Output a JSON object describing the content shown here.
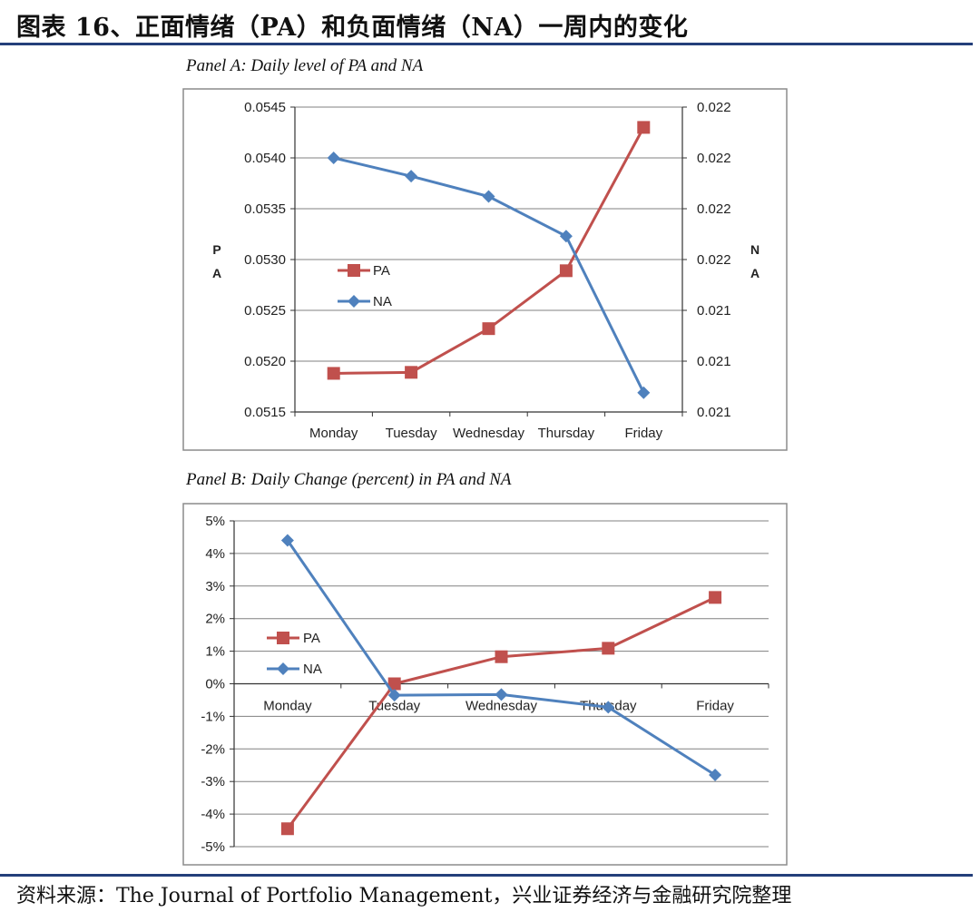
{
  "header": {
    "title": "图表 16、正面情绪（PA）和负面情绪（NA）一周内的变化"
  },
  "footer": {
    "source": "资料来源：The Journal of Portfolio Management，兴业证券经济与金融研究院整理"
  },
  "colors": {
    "pa": "#c0504d",
    "na": "#4f81bd",
    "grid": "#808080",
    "rule": "#243f7a"
  },
  "chart_data": [
    {
      "type": "line",
      "title": "Panel A: Daily level of PA and NA",
      "categories": [
        "Monday",
        "Tuesday",
        "Wednesday",
        "Thursday",
        "Friday"
      ],
      "ylabel": "PA",
      "y2label": "NA",
      "ylim": [
        0.0515,
        0.0545
      ],
      "yticks": [
        "0.0515",
        "0.0520",
        "0.0525",
        "0.0530",
        "0.0535",
        "0.0540",
        "0.0545"
      ],
      "y2ticks": [
        "0.021",
        "0.021",
        "0.021",
        "0.022",
        "0.022",
        "0.022",
        "0.022"
      ],
      "legend_position": "left-center",
      "grid": true,
      "series": [
        {
          "name": "PA",
          "axis": "left",
          "marker": "square",
          "values": [
            0.05188,
            0.05189,
            0.05232,
            0.05289,
            0.0543
          ]
        },
        {
          "name": "NA",
          "axis": "right",
          "marker": "diamond",
          "values": [
            0.054,
            0.05382,
            0.05362,
            0.05323,
            0.05169
          ]
        }
      ]
    },
    {
      "type": "line",
      "title": "Panel B: Daily Change (percent) in PA and NA",
      "categories": [
        "Monday",
        "Tuesday",
        "Wednesday",
        "Thursday",
        "Friday"
      ],
      "ylim": [
        -5,
        5
      ],
      "yticks": [
        "-5%",
        "-4%",
        "-3%",
        "-2%",
        "-1%",
        "0%",
        "1%",
        "2%",
        "3%",
        "4%",
        "5%"
      ],
      "legend_position": "left-center",
      "grid": true,
      "series": [
        {
          "name": "PA",
          "marker": "square",
          "values": [
            -4.45,
            0.0,
            0.83,
            1.09,
            2.65
          ]
        },
        {
          "name": "NA",
          "marker": "diamond",
          "values": [
            4.4,
            -0.35,
            -0.33,
            -0.72,
            -2.8
          ]
        }
      ]
    }
  ]
}
